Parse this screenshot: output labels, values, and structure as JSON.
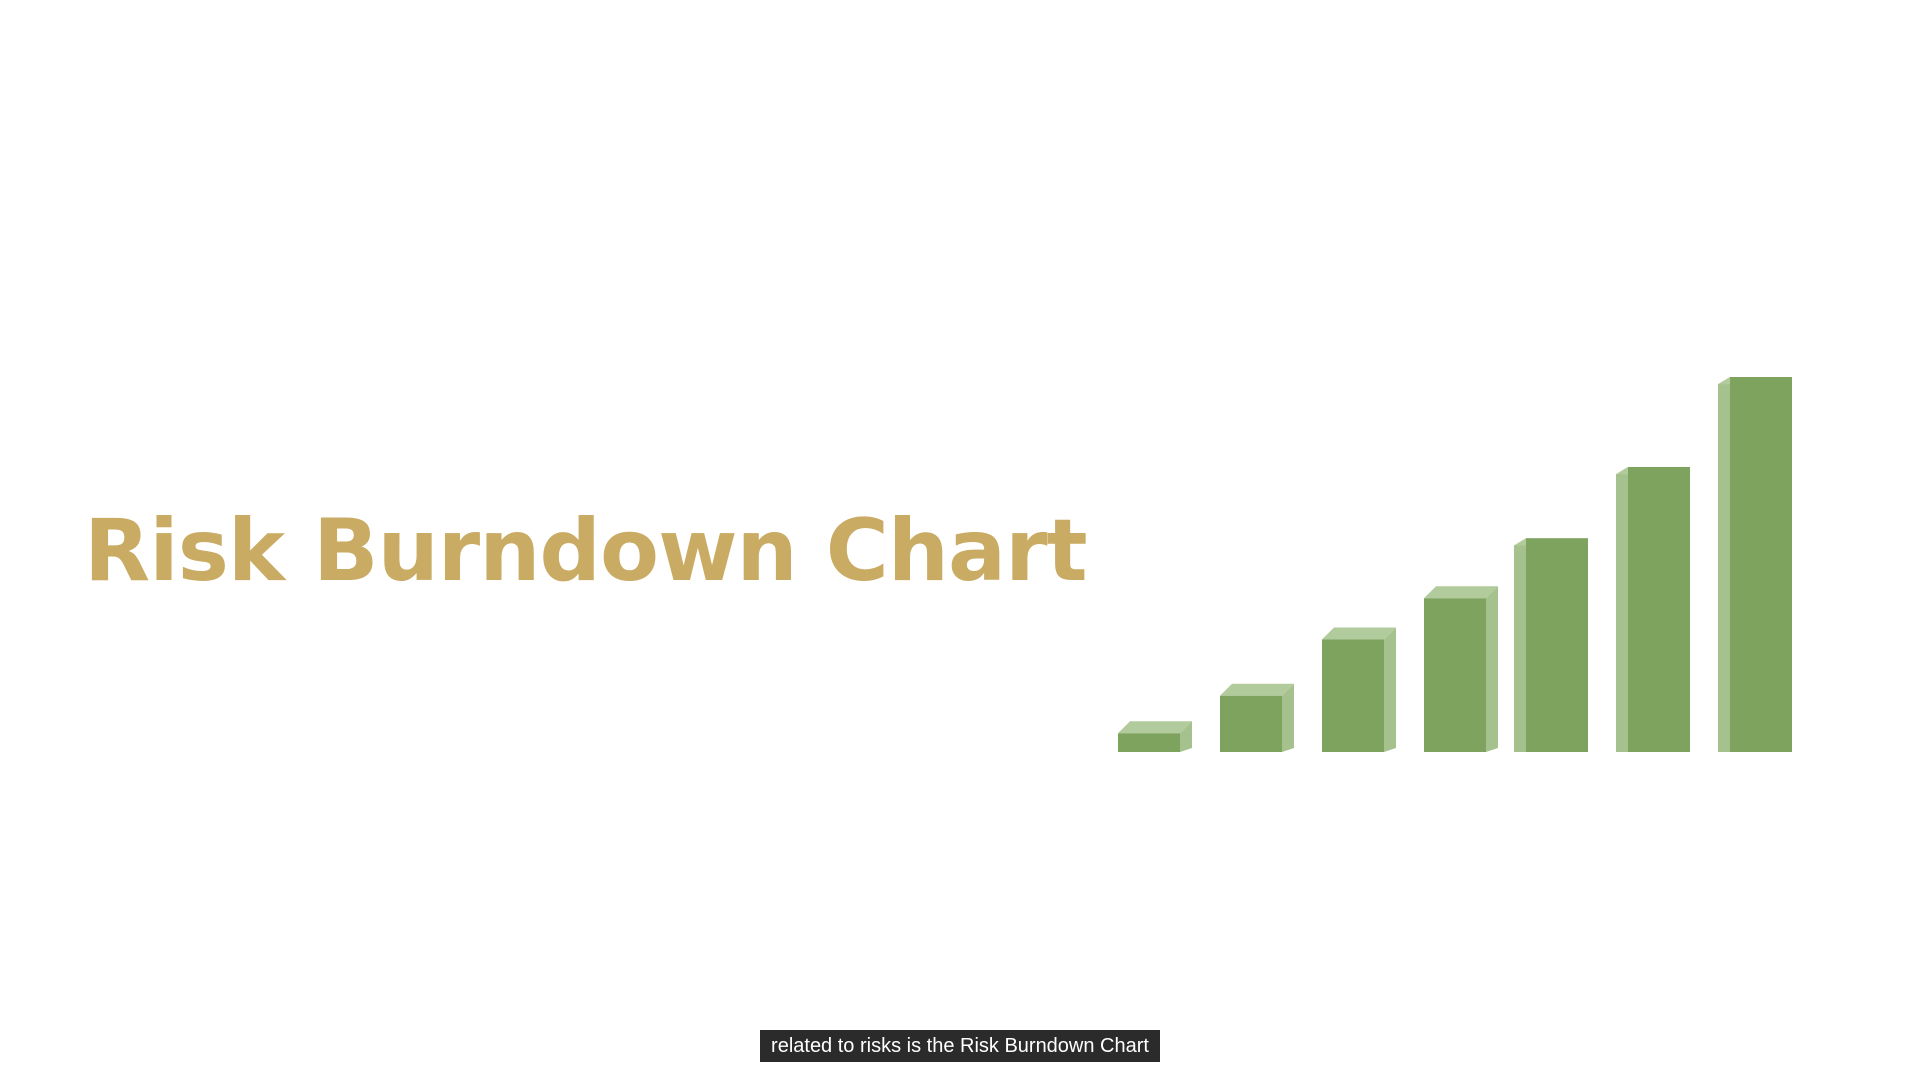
{
  "slide": {
    "title": "Risk Burndown Chart",
    "title_color": "#c9ab63"
  },
  "chart_data": {
    "type": "bar",
    "style": "3d",
    "values": [
      0.05,
      0.15,
      0.3,
      0.41,
      0.57,
      0.76,
      1.0
    ],
    "colors": {
      "front": "#7ea35f",
      "side": "#a5c18d",
      "top": "#b2cb9c"
    }
  },
  "caption": {
    "text": "related to risks is the Risk Burndown Chart",
    "background": "#2b2b2b",
    "color": "#ffffff"
  }
}
